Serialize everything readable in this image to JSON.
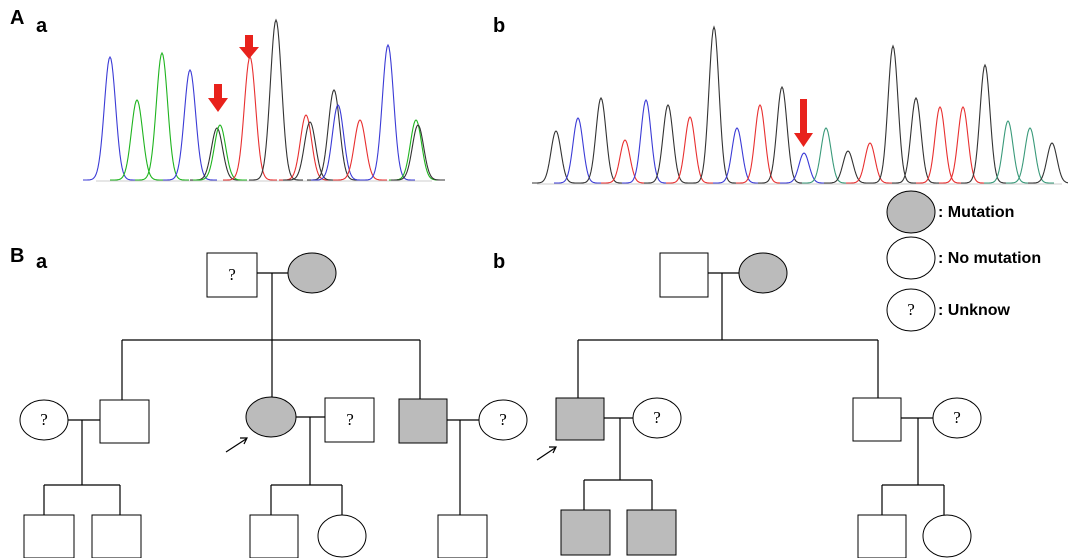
{
  "panel_labels": [
    "A",
    "B"
  ],
  "sub_labels": [
    "a",
    "b",
    "a",
    "b"
  ],
  "pedigree_a": {
    "unknown": [
      "?",
      "?",
      "?",
      "?"
    ]
  },
  "pedigree_b": {
    "unknown": [
      "?",
      "?"
    ]
  },
  "legend": {
    "labels": [
      ": Mutation",
      ": No mutation",
      ": Unknow"
    ],
    "unknown": "?"
  }
}
